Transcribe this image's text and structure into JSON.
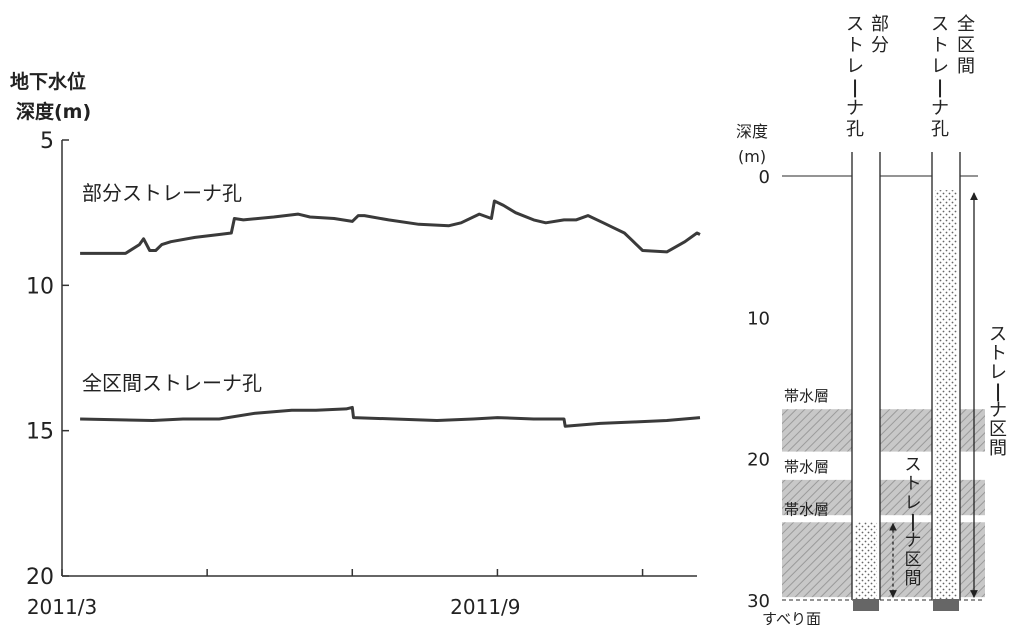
{
  "chart_data": [
    {
      "type": "line",
      "ylabel_line1": "地下水位",
      "ylabel_line2": "深度(m)",
      "y_reversed": true,
      "ylim": [
        5,
        20
      ],
      "yticks": [
        5,
        10,
        15,
        20
      ],
      "xlim": [
        0,
        10.5
      ],
      "x_tick_positions": [
        0,
        2.4,
        4.8,
        7.2,
        9.6
      ],
      "x_tick_labels": [
        {
          "x": 0,
          "label": "2011/3"
        },
        {
          "x": 7,
          "label": "2011/9"
        }
      ],
      "x_unit_note": "months since 2011/3",
      "series": [
        {
          "name": "部分ストレーナ孔",
          "color": "#3a3a3a",
          "x": [
            0.3,
            1.05,
            1.28,
            1.35,
            1.45,
            1.55,
            1.65,
            1.8,
            2.2,
            2.6,
            2.8,
            2.85,
            3.0,
            3.5,
            3.9,
            4.1,
            4.5,
            4.8,
            4.9,
            5.0,
            5.4,
            5.9,
            6.4,
            6.6,
            6.9,
            7.1,
            7.15,
            7.3,
            7.5,
            7.8,
            8.0,
            8.3,
            8.5,
            8.7,
            8.95,
            9.1,
            9.3,
            9.4,
            9.6,
            10.0,
            10.3,
            10.5,
            10.55
          ],
          "y": [
            8.9,
            8.9,
            8.6,
            8.4,
            8.8,
            8.8,
            8.6,
            8.5,
            8.35,
            8.25,
            8.2,
            7.7,
            7.75,
            7.65,
            7.55,
            7.65,
            7.7,
            7.8,
            7.6,
            7.6,
            7.75,
            7.9,
            7.95,
            7.85,
            7.55,
            7.7,
            7.1,
            7.25,
            7.5,
            7.75,
            7.85,
            7.75,
            7.75,
            7.6,
            7.85,
            8.0,
            8.2,
            8.4,
            8.8,
            8.85,
            8.5,
            8.2,
            8.25
          ]
        },
        {
          "name": "全区間ストレーナ孔",
          "color": "#3a3a3a",
          "x": [
            0.3,
            1.5,
            2.0,
            2.6,
            3.2,
            3.8,
            4.2,
            4.7,
            4.8,
            4.82,
            5.5,
            6.2,
            6.8,
            7.2,
            7.8,
            8.3,
            8.32,
            8.9,
            9.5,
            10.0,
            10.55
          ],
          "y": [
            14.6,
            14.65,
            14.6,
            14.6,
            14.4,
            14.3,
            14.3,
            14.25,
            14.2,
            14.55,
            14.6,
            14.65,
            14.6,
            14.55,
            14.6,
            14.6,
            14.85,
            14.75,
            14.7,
            14.65,
            14.55
          ]
        }
      ]
    },
    {
      "type": "schematic",
      "depth_label_line1": "深度",
      "depth_label_line2": "(m)",
      "depth_range": [
        0,
        30
      ],
      "depth_ticks": [
        0,
        10,
        20,
        30
      ],
      "wells": [
        {
          "name": "部分ストレーナ孔",
          "screen_top": 24.5,
          "screen_bottom": 30
        },
        {
          "name": "全区間ストレーナ孔",
          "screen_top": 1,
          "screen_bottom": 30
        }
      ],
      "aquifers": [
        {
          "label": "帯水層",
          "top": 16.5,
          "bottom": 19.5
        },
        {
          "label": "帯水層",
          "top": 21.5,
          "bottom": 24
        },
        {
          "label": "帯水層",
          "top": 24.5,
          "bottom": 29.8
        }
      ],
      "slip_surface_label": "すべり面",
      "partial_screen_label": "ストレーナ区間",
      "full_screen_label": "ストレーナ区間",
      "well1_label": "部分ストレーナ孔",
      "well2_label": "全区間ストレーナ孔"
    }
  ]
}
